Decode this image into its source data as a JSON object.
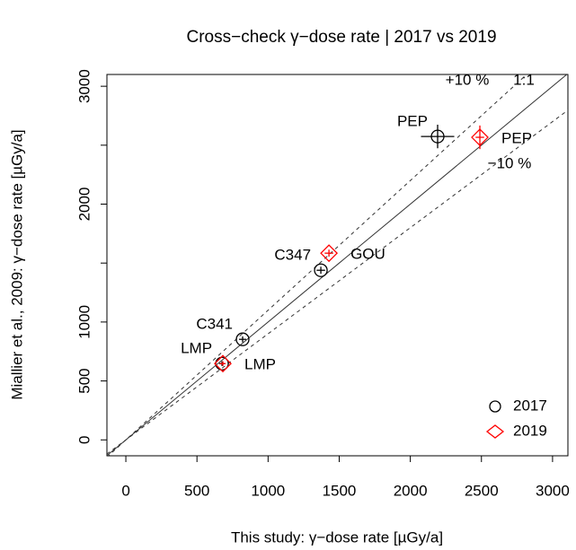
{
  "chart_data": {
    "type": "scatter",
    "title": "Cross−check γ−dose rate | 2017 vs 2019",
    "x_label": "This study: γ−dose rate [µGy/a]",
    "y_label": "Miallier et al., 2009: γ−dose rate [µGy/a]",
    "xlim": [
      -133,
      3108
    ],
    "ylim": [
      -135,
      3100
    ],
    "xticks": [
      0,
      500,
      1000,
      1500,
      2000,
      2500,
      3000
    ],
    "yticks": [
      0,
      500,
      1000,
      {
        "value": 1500,
        "label": null
      },
      2000,
      {
        "value": 2500,
        "label": null
      },
      3000
    ],
    "reference_lines": [
      {
        "slope": 1,
        "label": "1:1",
        "dash": false
      },
      {
        "slope": 1.1,
        "label": "+10 %",
        "dash": true
      },
      {
        "slope": 0.9,
        "label": "−10 %",
        "dash": true
      }
    ],
    "series": [
      {
        "name": "2017",
        "color": "#000000",
        "marker": "circle",
        "labels": [
          "LMP",
          "C341",
          "C347",
          "PEP"
        ],
        "x": [
          676,
          821,
          1371,
          2192
        ],
        "values": [
          647,
          853,
          1439,
          2574
        ],
        "x_err": [
          20,
          25,
          30,
          117
        ],
        "y_err": [
          20,
          25,
          30,
          100
        ]
      },
      {
        "name": "2019",
        "color": "#ff0000",
        "marker": "diamond",
        "labels": [
          "LMP",
          "GOU",
          "PEP"
        ],
        "x": [
          682,
          1428,
          2489
        ],
        "values": [
          647,
          1584,
          2567
        ],
        "x_err": [
          20,
          30,
          30
        ],
        "y_err": [
          20,
          30,
          100
        ]
      }
    ],
    "legend": "bottomright"
  }
}
